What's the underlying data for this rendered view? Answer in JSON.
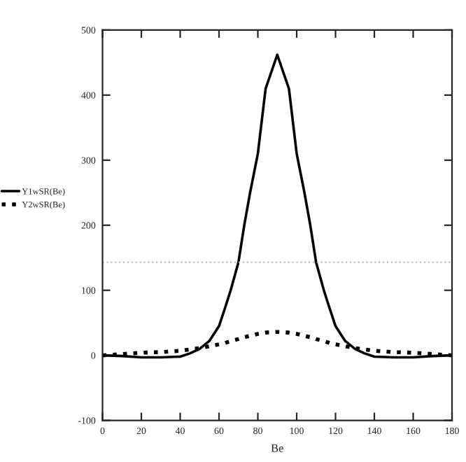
{
  "chart_data": {
    "type": "line",
    "xlabel": "Be",
    "x": [
      0,
      10,
      20,
      30,
      40,
      45,
      50,
      55,
      60,
      63,
      66,
      70,
      73,
      76,
      80,
      84,
      90,
      96,
      100,
      104,
      107,
      110,
      114,
      117,
      120,
      125,
      130,
      135,
      140,
      150,
      160,
      170,
      180
    ],
    "series": [
      {
        "name": "Y1wSR(Be)",
        "color": "#000000",
        "line_style": "solid",
        "values": [
          0,
          -1,
          -3,
          -3,
          -2,
          3,
          10,
          22,
          45,
          72,
          100,
          143,
          200,
          250,
          310,
          410,
          462,
          410,
          310,
          250,
          200,
          143,
          100,
          72,
          45,
          22,
          10,
          3,
          -2,
          -3,
          -3,
          -1,
          0
        ]
      },
      {
        "name": "Y2wSR(Be)",
        "color": "#000000",
        "line_style": "dotted",
        "values": [
          0,
          2,
          4,
          5,
          7,
          9,
          11,
          14,
          17,
          19,
          22,
          25,
          28,
          30,
          33,
          35,
          36,
          35,
          33,
          30,
          28,
          25,
          22,
          19,
          17,
          14,
          11,
          9,
          7,
          5,
          4,
          2,
          0
        ]
      }
    ],
    "xlim": [
      0,
      180
    ],
    "xticks": [
      0,
      20,
      40,
      60,
      80,
      100,
      120,
      140,
      160,
      180
    ],
    "ylim": [
      -100,
      500
    ],
    "yticks": [
      -100,
      0,
      100,
      200,
      300,
      400,
      500
    ],
    "ref_lines": [
      {
        "axis": "y",
        "value": 143,
        "color": "#bbbbbb",
        "line_style": "dotted"
      }
    ],
    "legend": "left",
    "grid": false
  }
}
